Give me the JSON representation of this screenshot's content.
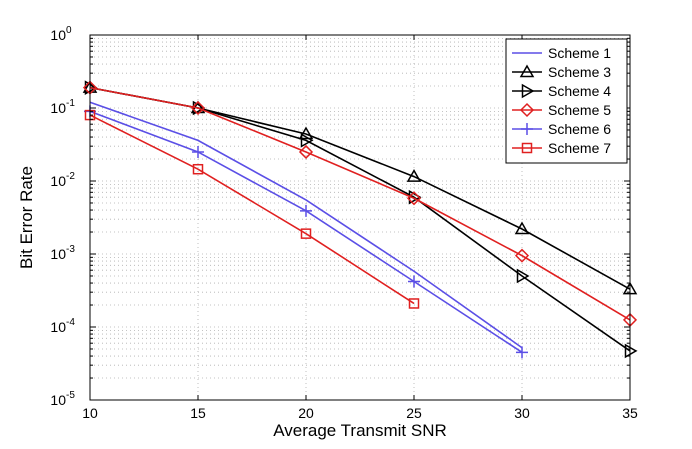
{
  "chart_data": {
    "type": "line",
    "title": "",
    "xlabel": "Average Transmit SNR",
    "ylabel": "Bit Error Rate",
    "xlim": [
      10,
      35
    ],
    "ylim": [
      1e-05,
      1
    ],
    "yscale": "log",
    "x_ticks": [
      "10",
      "15",
      "20",
      "25",
      "30",
      "35"
    ],
    "y_ticks": [
      {
        "base": "10",
        "exp": "-5"
      },
      {
        "base": "10",
        "exp": "-4"
      },
      {
        "base": "10",
        "exp": "-3"
      },
      {
        "base": "10",
        "exp": "-2"
      },
      {
        "base": "10",
        "exp": "-1"
      },
      {
        "base": "10",
        "exp": "0"
      }
    ],
    "grid": true,
    "legend_position": "top-right",
    "series": [
      {
        "name": "Scheme 1",
        "color": "#5b4fe6",
        "marker": "none",
        "x": [
          10,
          15,
          20,
          25,
          30
        ],
        "y": [
          0.12,
          0.036,
          0.0055,
          0.00058,
          5.2e-05
        ]
      },
      {
        "name": "Scheme 3",
        "color": "#000000",
        "marker": "triangle-up",
        "x": [
          10,
          15,
          20,
          25,
          30,
          35
        ],
        "y": [
          0.19,
          0.1,
          0.044,
          0.0115,
          0.0022,
          0.00033
        ]
      },
      {
        "name": "Scheme 4",
        "color": "#000000",
        "marker": "triangle-right",
        "x": [
          10,
          15,
          20,
          25,
          30,
          35
        ],
        "y": [
          0.19,
          0.1,
          0.036,
          0.006,
          0.0005,
          4.7e-05
        ]
      },
      {
        "name": "Scheme 5",
        "color": "#e02020",
        "marker": "diamond",
        "x": [
          10,
          15,
          20,
          25,
          30,
          35
        ],
        "y": [
          0.19,
          0.1,
          0.025,
          0.0058,
          0.00095,
          0.000125
        ]
      },
      {
        "name": "Scheme 6",
        "color": "#5b4fe6",
        "marker": "plus",
        "x": [
          10,
          15,
          20,
          25,
          30
        ],
        "y": [
          0.09,
          0.025,
          0.0039,
          0.00042,
          4.5e-05
        ]
      },
      {
        "name": "Scheme 7",
        "color": "#e02020",
        "marker": "square",
        "x": [
          10,
          15,
          20,
          25
        ],
        "y": [
          0.08,
          0.0145,
          0.0019,
          0.00021
        ]
      }
    ]
  }
}
